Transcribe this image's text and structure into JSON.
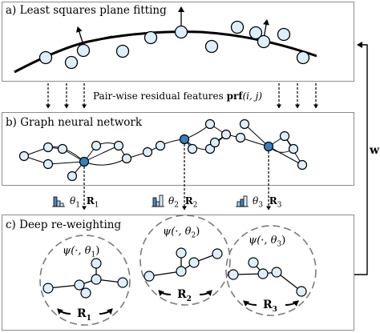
{
  "panels": {
    "a_title": "a) Least squares plane fitting",
    "b_title": "b) Graph neural network",
    "c_title": "c) Deep re-weighting"
  },
  "features_label": {
    "text": "Pair-wise residual features",
    "fn": "prf",
    "args": "(i, j)"
  },
  "feedback_label": "w",
  "params": [
    {
      "theta": "θ",
      "sub": "1",
      "R": "R",
      "rsub": "1"
    },
    {
      "theta": "θ",
      "sub": "2",
      "R": "R",
      "rsub": "2"
    },
    {
      "theta": "θ",
      "sub": "3",
      "R": "R",
      "rsub": "3"
    }
  ],
  "psi": [
    {
      "fn": "ψ",
      "args": "(·, θ",
      "sub": "1",
      "close": ")"
    },
    {
      "fn": "ψ",
      "args": "(·, θ",
      "sub": "2",
      "close": ")"
    },
    {
      "fn": "ψ",
      "args": "(·, θ",
      "sub": "3",
      "close": ")"
    }
  ],
  "rotation_labels": [
    {
      "R": "R",
      "sub": "1"
    },
    {
      "R": "R",
      "sub": "2"
    },
    {
      "R": "R",
      "sub": "3"
    }
  ],
  "colors": {
    "node_fill": "#dceffa",
    "node_highlight": "#3b7fb8",
    "panel_border": "#8c8c8c",
    "circle_dash": "#7a7a7a",
    "histogram_bar": "#4a86c0"
  }
}
